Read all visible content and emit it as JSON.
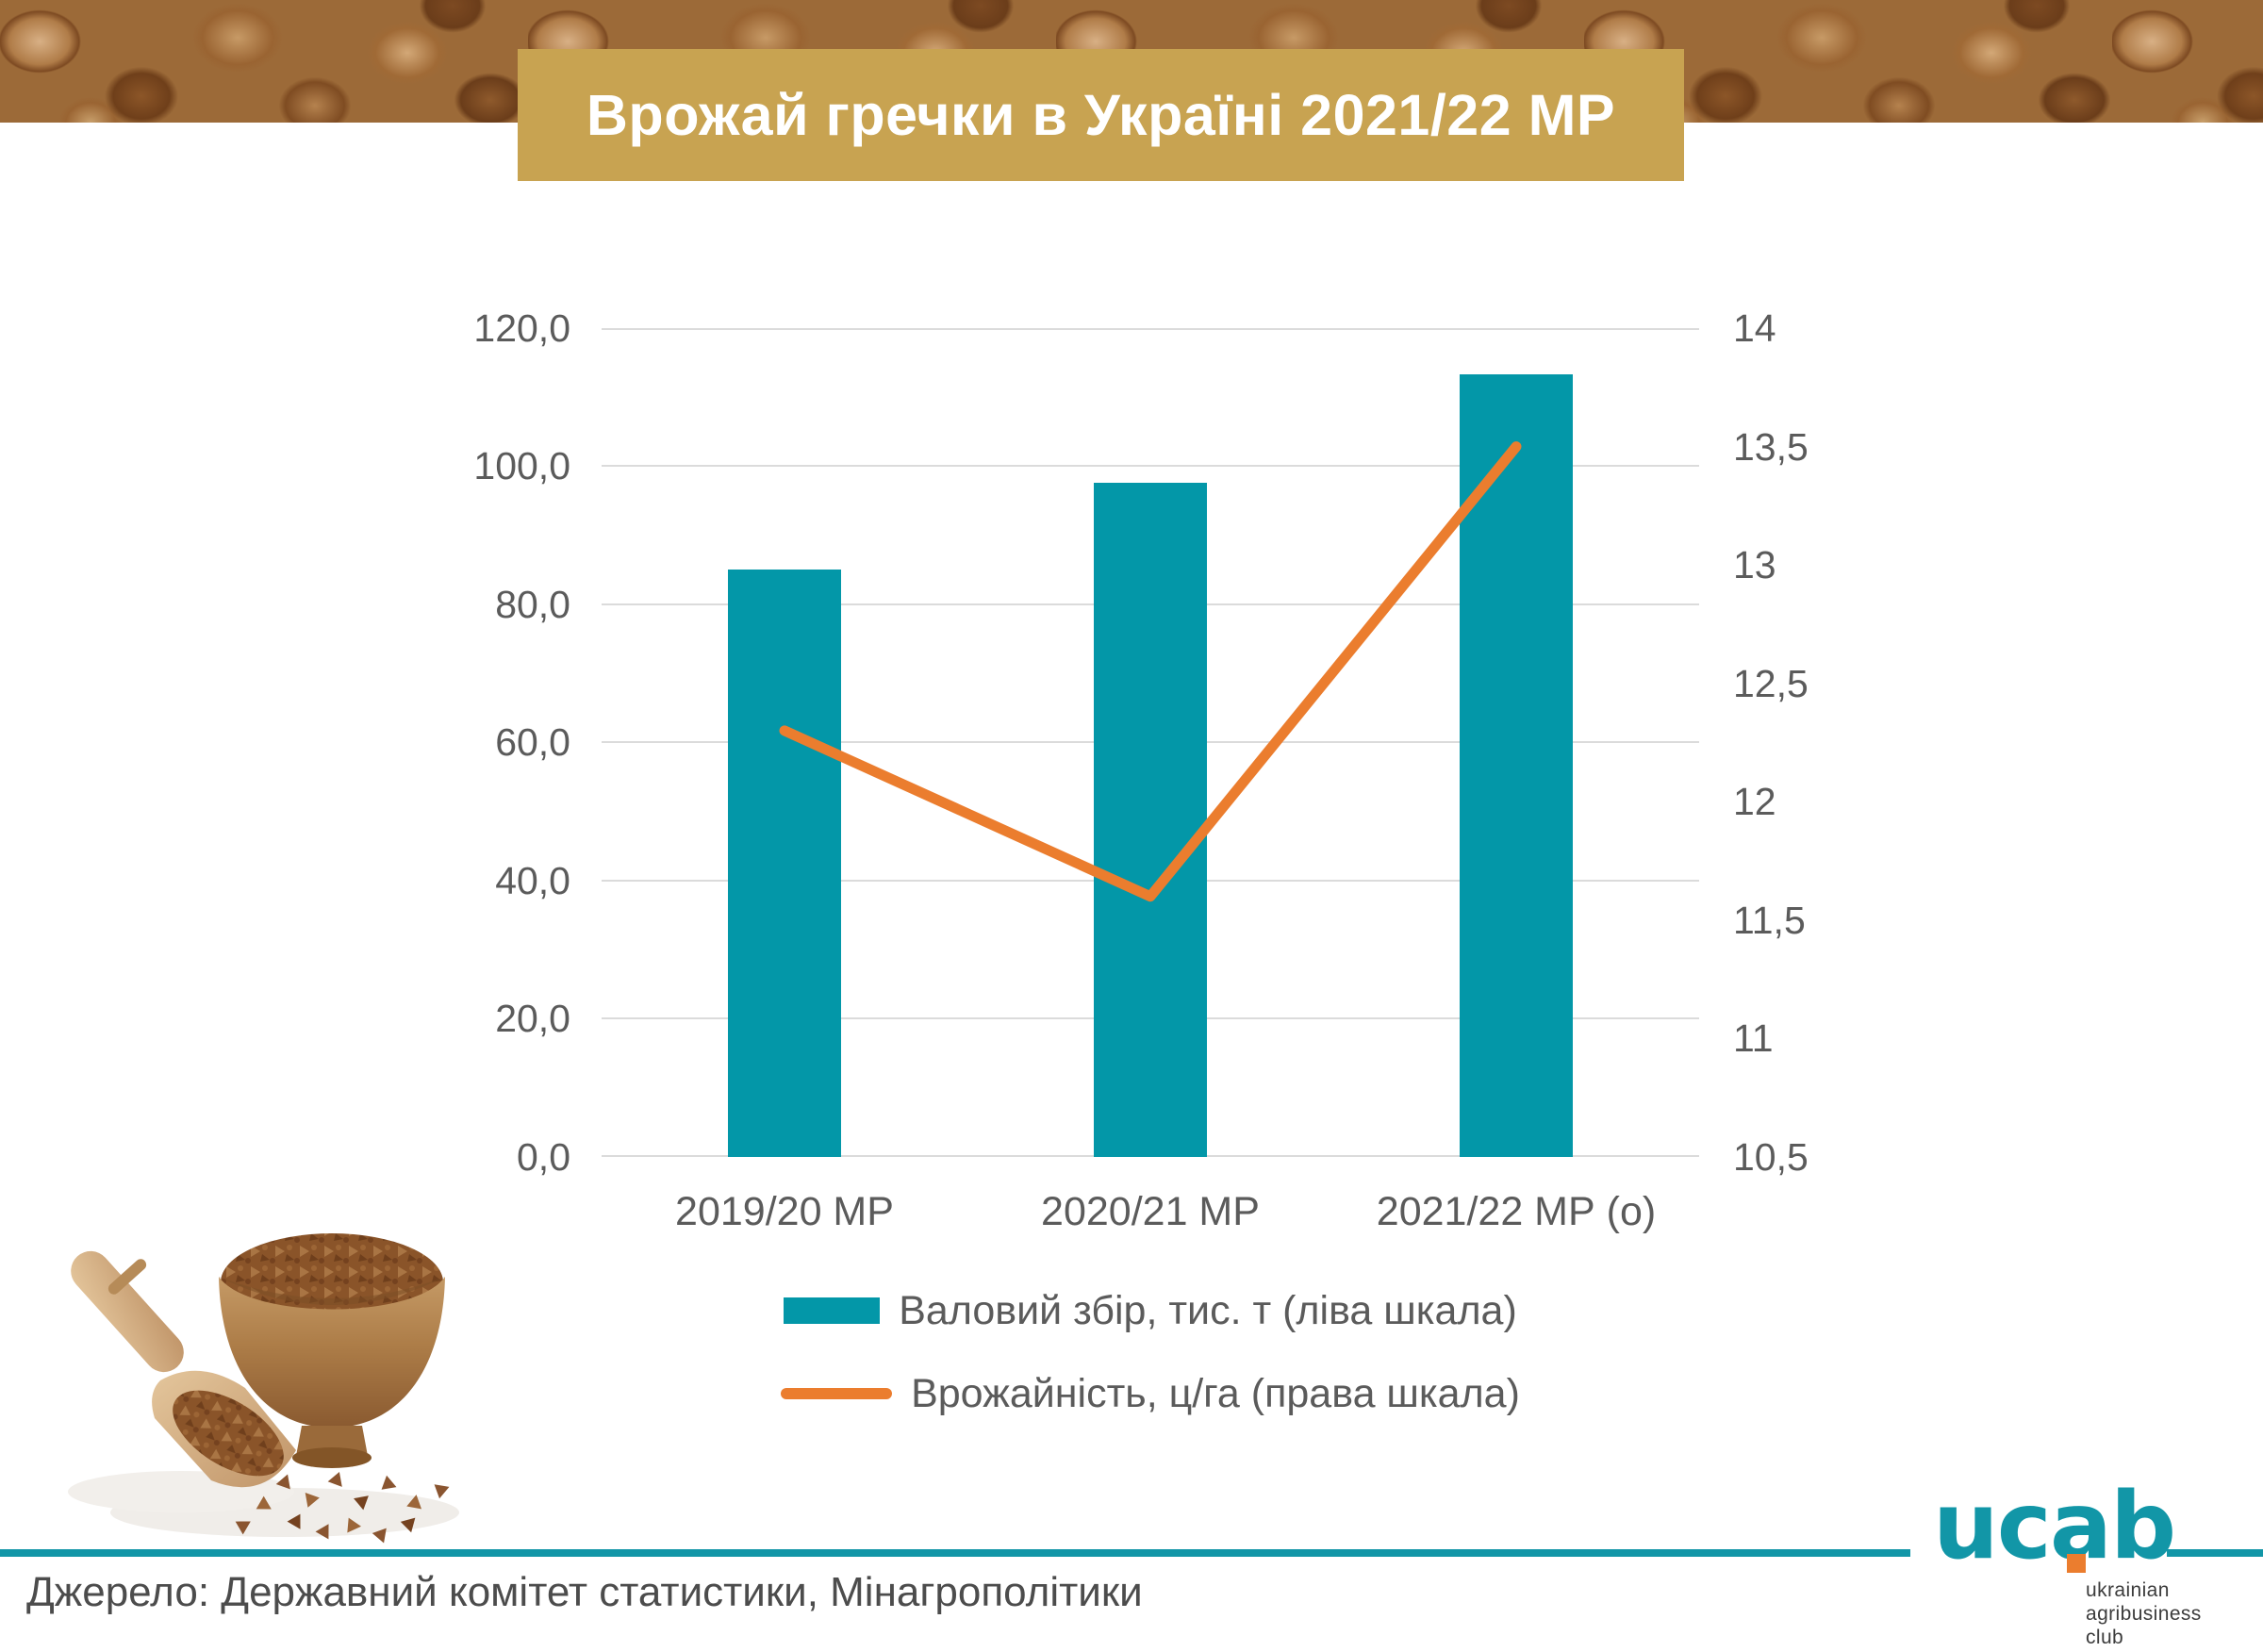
{
  "header": {
    "title": "Врожай гречки в Україні 2021/22 МР"
  },
  "source": {
    "label": "Джерело: Державний комітет статистики, Мінагрополітики"
  },
  "logo": {
    "wordmark": "ucab",
    "tagline_lines": [
      "ukrainian",
      "agribusiness",
      "club"
    ]
  },
  "colors": {
    "bar_teal": "#0397A8",
    "line_orange": "#EB7D2E",
    "title_gold": "#C8A351",
    "rule_teal": "#1296A7",
    "axis_text": "#5B5B5B",
    "grid": "#DBDBDB"
  },
  "chart_data": {
    "type": "bar",
    "subtype": "bar+line combo, dual axis",
    "categories": [
      "2019/20 МР",
      "2020/21 МР",
      "2021/22 МР (о)"
    ],
    "series": [
      {
        "name": "Валовий збір, тис. т (ліва шкала)",
        "type": "bar",
        "axis": "left",
        "color": "#0397A8",
        "values": [
          85.0,
          97.6,
          113.3
        ]
      },
      {
        "name": "Врожайність, ц/га (права шкала)",
        "type": "line",
        "axis": "right",
        "color": "#EB7D2E",
        "values": [
          12.3,
          11.6,
          13.5
        ]
      }
    ],
    "left_axis": {
      "min": 0,
      "max": 120,
      "step": 20,
      "ticks": [
        "120,0",
        "100,0",
        "80,0",
        "60,0",
        "40,0",
        "20,0",
        "0,0"
      ]
    },
    "right_axis": {
      "min": 10.5,
      "max": 14,
      "step": 0.5,
      "ticks": [
        "14",
        "13,5",
        "13",
        "12,5",
        "12",
        "11,5",
        "11",
        "10,5"
      ]
    },
    "grid": true,
    "legend_position": "bottom",
    "title": "Врожай гречки в Україні 2021/22 МР"
  }
}
